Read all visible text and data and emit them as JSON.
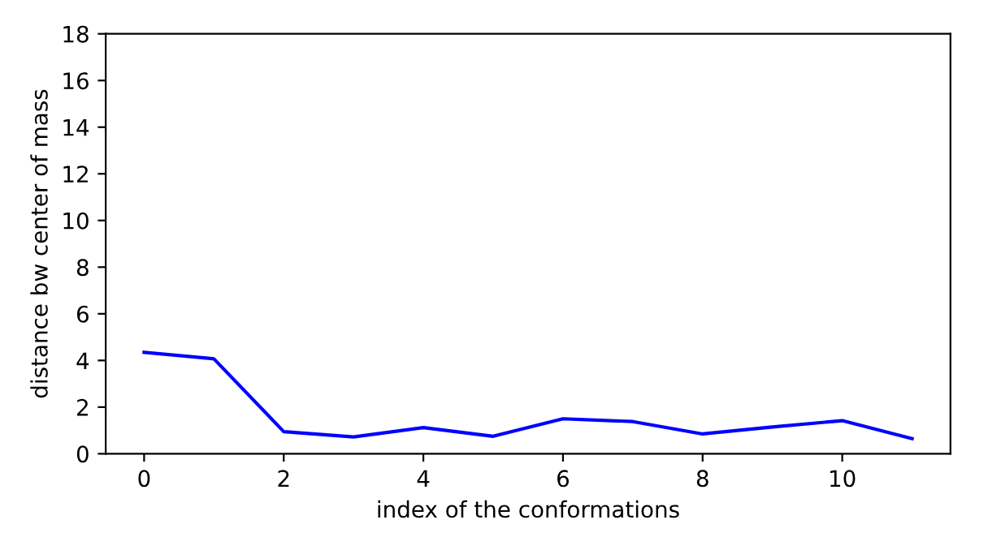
{
  "chart_data": {
    "type": "line",
    "xlabel": "index of the conformations",
    "ylabel": "distance bw center of mass",
    "x": [
      0,
      1,
      2,
      3,
      4,
      5,
      6,
      7,
      8,
      9,
      10,
      11
    ],
    "series": [
      {
        "color": "#0000ff",
        "values": [
          4.35,
          4.07,
          0.95,
          0.72,
          1.12,
          0.75,
          1.5,
          1.38,
          0.85,
          1.15,
          1.42,
          0.65
        ]
      }
    ],
    "xlim": [
      -0.55,
      11.55
    ],
    "xticks": [
      0,
      2,
      4,
      6,
      8,
      10
    ],
    "ylim": [
      0,
      18
    ],
    "yticks": [
      0,
      2,
      4,
      6,
      8,
      10,
      12,
      14,
      16,
      18
    ],
    "grid": false,
    "legend": false,
    "marker": "none",
    "line_style": "solid"
  }
}
